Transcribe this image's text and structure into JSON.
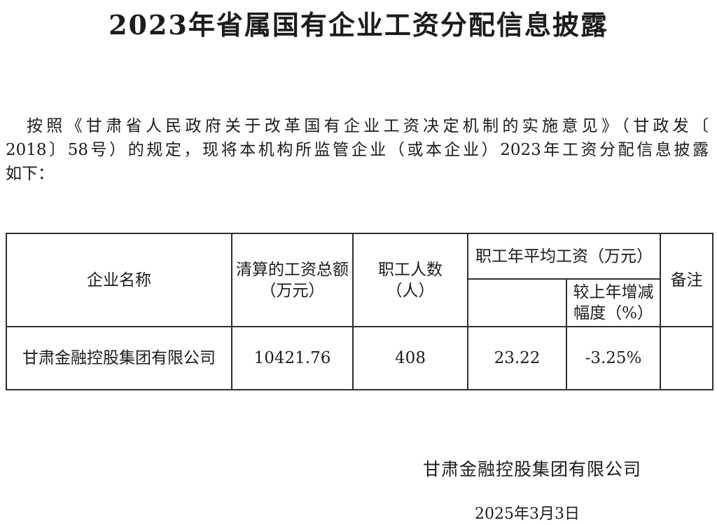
{
  "title": "2023年省属国有企业工资分配信息披露",
  "intro": {
    "lines": [
      "按照《甘肃省人民政府关于改革国有企业工资决定机制的实施意见》（甘政发〔",
      "2018〕58号）的规定，现将本机构所监管企业（或本企业）2023年工资分配信息披露",
      "如下："
    ]
  },
  "table": {
    "headers": {
      "company": "企业名称",
      "total_wages": "清算的工资总额\n（万元）",
      "employees": "职工人数\n（人）",
      "avg_wage_group": "职工年平均工资（万元）",
      "avg_wage_sub": "",
      "yoy_change": "较上年增减\n幅度（%）",
      "remarks": "备注"
    },
    "rows": [
      {
        "company": "甘肃金融控股集团有限公司",
        "total_wages": "10421.76",
        "employees": "408",
        "avg_wage": "23.22",
        "yoy_change": "-3.25%",
        "remarks": ""
      }
    ]
  },
  "footer": {
    "signature": "甘肃金融控股集团有限公司",
    "date": "2025年3月3日"
  },
  "colors": {
    "text": "#1c1c1c",
    "border": "#2f2f2f",
    "background": "#ffffff"
  }
}
